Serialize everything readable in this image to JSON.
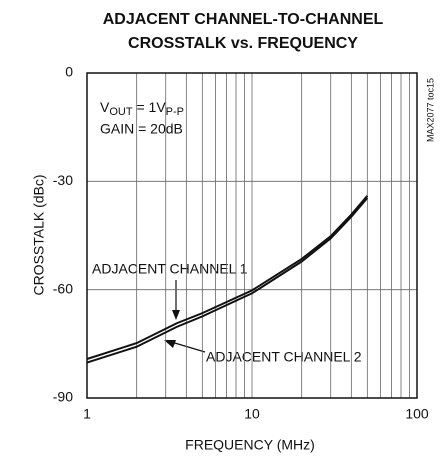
{
  "chart_data": {
    "type": "line",
    "title": [
      "ADJACENT CHANNEL-TO-CHANNEL",
      "CROSSTALK vs. FREQUENCY"
    ],
    "xlabel": "FREQUENCY (MHz)",
    "ylabel": "CROSSTALK (dBc)",
    "side_note": "MAX2077 toc15",
    "annotation_vout": [
      "V",
      "OUT",
      " = 1V",
      "P-P"
    ],
    "annotation_gain": "GAIN = 20dB",
    "xscale": "log",
    "xlim": [
      1,
      100
    ],
    "xticks": [
      1,
      10,
      100
    ],
    "ylim": [
      -90,
      0
    ],
    "yticks": [
      0,
      -30,
      -60,
      -90
    ],
    "grid": true,
    "x": [
      1,
      2,
      3.5,
      5,
      10,
      20,
      30,
      40,
      50
    ],
    "series": [
      {
        "name": "ADJACENT CHANNEL 1",
        "color": "#111111",
        "values": [
          -79.2,
          -74.8,
          -69.3,
          -66.5,
          -60.2,
          -51.5,
          -45.2,
          -39.2,
          -34
        ]
      },
      {
        "name": "ADJACENT CHANNEL 2",
        "color": "#111111",
        "values": [
          -80.2,
          -75.8,
          -70.3,
          -67.4,
          -61,
          -52.2,
          -45.8,
          -39.8,
          -34.6
        ]
      }
    ]
  }
}
